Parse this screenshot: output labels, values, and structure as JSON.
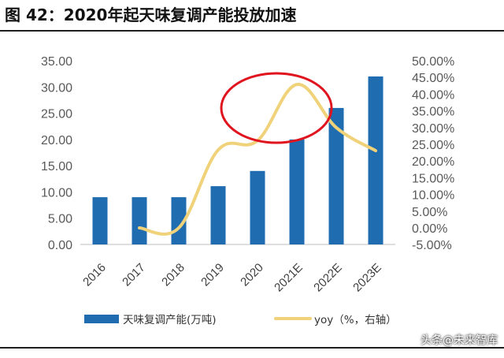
{
  "title": "图 42：2020年起天味复调产能投放加速",
  "watermark": "头条@未来智库",
  "colors": {
    "bar": "#1f6cb0",
    "line": "#f0d27a",
    "circle": "#e0141e"
  },
  "chart_data": {
    "type": "bar",
    "categories": [
      "2016",
      "2017",
      "2018",
      "2019",
      "2020",
      "2021E",
      "2022E",
      "2023E"
    ],
    "series": [
      {
        "name": "天味复调产能(万吨)",
        "type": "bar",
        "axis": "left",
        "values": [
          9.0,
          9.0,
          9.0,
          11.1,
          14.0,
          20.0,
          26.0,
          32.0
        ]
      },
      {
        "name": "yoy（%，右轴）",
        "type": "line",
        "axis": "right",
        "values": [
          null,
          0.0,
          0.0,
          23.3,
          26.1,
          42.9,
          30.0,
          23.1
        ]
      }
    ],
    "left_axis": {
      "ylim": [
        0,
        35
      ],
      "ticks": [
        "0.00",
        "5.00",
        "10.00",
        "15.00",
        "20.00",
        "25.00",
        "30.00",
        "35.00"
      ]
    },
    "right_axis": {
      "ylim": [
        -5,
        50
      ],
      "ticks": [
        "-5.00%",
        "0.00%",
        "5.00%",
        "10.00%",
        "15.00%",
        "20.00%",
        "25.00%",
        "30.00%",
        "35.00%",
        "40.00%",
        "45.00%",
        "50.00%"
      ]
    },
    "legend_position": "bottom",
    "annotation": "red ellipse highlighting 2020–2021E growth acceleration"
  }
}
